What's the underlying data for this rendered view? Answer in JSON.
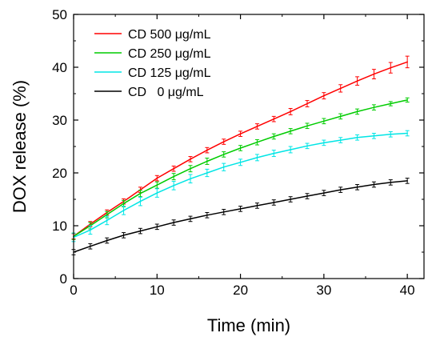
{
  "chart_data": {
    "type": "line",
    "xlabel": "Time (min)",
    "ylabel": "DOX release (%)",
    "xlim": [
      0,
      42
    ],
    "ylim": [
      0,
      50
    ],
    "x_ticks": [
      0,
      10,
      20,
      30,
      40
    ],
    "y_ticks": [
      0,
      10,
      20,
      30,
      40,
      50
    ],
    "error_bars": true,
    "legend_position": "top-left",
    "x": [
      0,
      2,
      4,
      6,
      8,
      10,
      12,
      14,
      16,
      18,
      20,
      22,
      24,
      26,
      28,
      30,
      32,
      34,
      36,
      38,
      40
    ],
    "series": [
      {
        "name": "CD 500 μg/mL",
        "color": "#ff0000",
        "values": [
          8.0,
          10.3,
          12.5,
          14.6,
          16.8,
          19.0,
          20.8,
          22.6,
          24.3,
          25.9,
          27.4,
          28.8,
          30.2,
          31.6,
          33.1,
          34.6,
          36.0,
          37.4,
          38.7,
          39.9,
          41.0
        ],
        "error": [
          0.5,
          0.5,
          0.5,
          0.5,
          0.5,
          0.5,
          0.5,
          0.5,
          0.5,
          0.5,
          0.5,
          0.5,
          0.5,
          0.6,
          0.6,
          0.6,
          0.7,
          0.8,
          0.9,
          1.0,
          1.1
        ]
      },
      {
        "name": "CD 250 μg/mL",
        "color": "#00cc00",
        "values": [
          8.0,
          10.0,
          12.1,
          14.2,
          16.1,
          17.7,
          19.3,
          20.8,
          22.2,
          23.5,
          24.7,
          25.8,
          26.9,
          27.9,
          28.9,
          29.8,
          30.7,
          31.6,
          32.4,
          33.1,
          33.8
        ],
        "error": [
          0.6,
          0.6,
          0.6,
          0.6,
          0.6,
          0.6,
          0.6,
          0.6,
          0.6,
          0.5,
          0.5,
          0.5,
          0.5,
          0.5,
          0.5,
          0.5,
          0.5,
          0.5,
          0.5,
          0.4,
          0.4
        ]
      },
      {
        "name": "CD 125 μg/mL",
        "color": "#00e5e5",
        "values": [
          7.8,
          9.2,
          11.0,
          12.9,
          14.6,
          16.2,
          17.6,
          18.9,
          20.0,
          21.1,
          22.0,
          22.9,
          23.7,
          24.4,
          25.1,
          25.7,
          26.2,
          26.7,
          27.0,
          27.3,
          27.5
        ],
        "error": [
          0.8,
          0.8,
          0.8,
          0.8,
          0.8,
          0.8,
          0.8,
          0.8,
          0.7,
          0.7,
          0.6,
          0.6,
          0.6,
          0.6,
          0.5,
          0.5,
          0.5,
          0.5,
          0.5,
          0.5,
          0.5
        ]
      },
      {
        "name": "CD 0 μg/mL",
        "legend_label": "CD   0 μg/mL",
        "color": "#000000",
        "values": [
          5.0,
          6.1,
          7.2,
          8.2,
          9.0,
          9.8,
          10.6,
          11.3,
          12.0,
          12.6,
          13.2,
          13.8,
          14.4,
          15.0,
          15.6,
          16.2,
          16.8,
          17.3,
          17.8,
          18.2,
          18.5
        ],
        "error": [
          0.5,
          0.5,
          0.5,
          0.5,
          0.5,
          0.5,
          0.5,
          0.5,
          0.5,
          0.5,
          0.5,
          0.5,
          0.5,
          0.5,
          0.5,
          0.5,
          0.5,
          0.5,
          0.5,
          0.5,
          0.5
        ]
      }
    ]
  }
}
